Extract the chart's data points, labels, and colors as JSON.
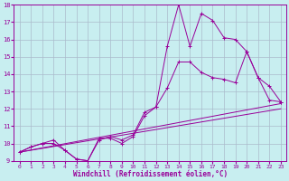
{
  "xlabel": "Windchill (Refroidissement éolien,°C)",
  "bg_color": "#c8eef0",
  "line_color": "#990099",
  "grid_color": "#aabbcc",
  "xlim": [
    -0.5,
    23.5
  ],
  "ylim": [
    9,
    18
  ],
  "xticks": [
    0,
    1,
    2,
    3,
    4,
    5,
    6,
    7,
    8,
    9,
    10,
    11,
    12,
    13,
    14,
    15,
    16,
    17,
    18,
    19,
    20,
    21,
    22,
    23
  ],
  "yticks": [
    9,
    10,
    11,
    12,
    13,
    14,
    15,
    16,
    17,
    18
  ],
  "series": [
    {
      "x": [
        0,
        1,
        2,
        3,
        4,
        5,
        6,
        7,
        8,
        9,
        10,
        11,
        12,
        13,
        14,
        15,
        16,
        17,
        18,
        19,
        20,
        21,
        22,
        23
      ],
      "y": [
        9.5,
        9.8,
        10.0,
        10.0,
        9.6,
        9.1,
        9.0,
        10.3,
        10.3,
        10.0,
        10.4,
        11.6,
        12.1,
        15.6,
        18.0,
        15.6,
        17.5,
        17.1,
        16.1,
        16.0,
        15.3,
        13.8,
        12.5,
        12.4
      ],
      "marker": true
    },
    {
      "x": [
        0,
        1,
        2,
        3,
        4,
        5,
        6,
        7,
        8,
        9,
        10,
        11,
        12,
        13,
        14,
        15,
        16,
        17,
        18,
        19,
        20,
        21,
        22,
        23
      ],
      "y": [
        9.5,
        9.8,
        10.0,
        10.2,
        9.6,
        9.1,
        9.0,
        10.2,
        10.4,
        10.2,
        10.5,
        11.8,
        12.1,
        13.2,
        14.7,
        14.7,
        14.1,
        13.8,
        13.7,
        13.5,
        15.3,
        13.8,
        13.3,
        12.4
      ],
      "marker": true
    },
    {
      "comment": "nearly straight line top (0->9.5, 23->12.3)",
      "x": [
        0,
        23
      ],
      "y": [
        9.5,
        12.3
      ],
      "marker": false
    },
    {
      "comment": "straight line bottom (0->9.5, 23->12.0)",
      "x": [
        0,
        23
      ],
      "y": [
        9.5,
        12.0
      ],
      "marker": false
    }
  ]
}
